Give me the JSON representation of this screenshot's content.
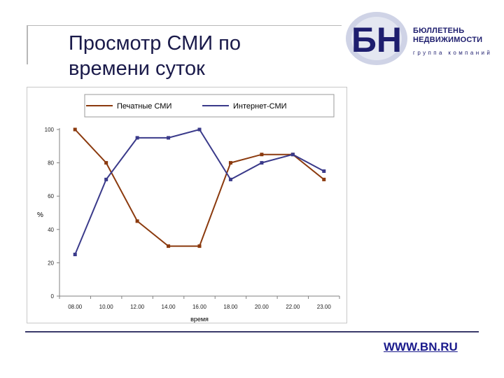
{
  "slide": {
    "title": "Просмотр СМИ по времени суток",
    "url": "WWW.BN.RU"
  },
  "logo": {
    "mark": "БН",
    "line1": "БЮЛЛЕТЕНЬ",
    "line2": "НЕДВИЖИМОСТИ",
    "sub": "группа компаний",
    "colors": {
      "dark": "#1e1e6e",
      "light": "#cfd3e6",
      "accent": "#ffffff"
    }
  },
  "chart_data": {
    "type": "line",
    "categories": [
      "08.00",
      "10.00",
      "12.00",
      "14.00",
      "16.00",
      "18.00",
      "20.00",
      "22.00",
      "23.00"
    ],
    "series": [
      {
        "name": "Печатные СМИ",
        "values": [
          100,
          80,
          45,
          30,
          30,
          80,
          85,
          85,
          70
        ],
        "color": "#8b3a0e"
      },
      {
        "name": "Интернет-СМИ",
        "values": [
          25,
          70,
          95,
          95,
          100,
          70,
          80,
          85,
          75
        ],
        "color": "#3a3a8a"
      }
    ],
    "title": "",
    "xlabel": "время",
    "ylabel": "%",
    "ylim": [
      0,
      100
    ],
    "yticks": [
      0,
      20,
      40,
      60,
      80,
      100
    ],
    "grid": false,
    "legend": "top"
  }
}
